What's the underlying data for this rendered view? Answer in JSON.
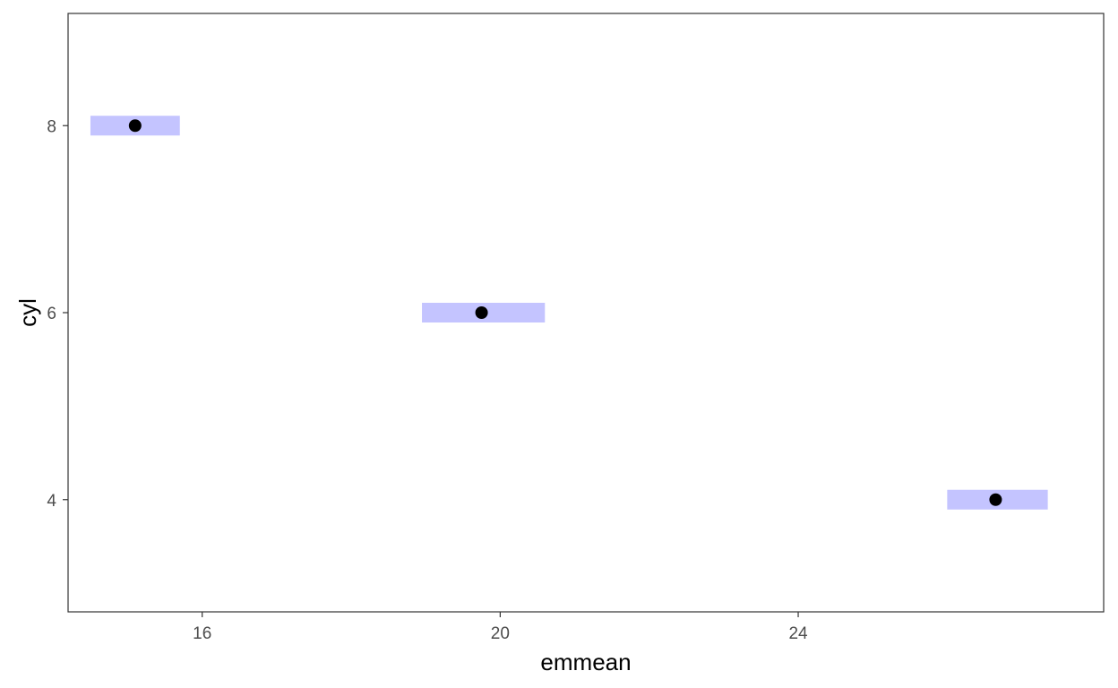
{
  "chart_data": {
    "type": "scatter",
    "title": "",
    "xlabel": "emmean",
    "ylabel": "cyl",
    "xlim": [
      14.2,
      28.1
    ],
    "ylim": [
      2.8,
      9.2
    ],
    "x_ticks": [
      16,
      20,
      24
    ],
    "y_ticks": [
      4,
      6,
      8
    ],
    "x_tick_labels": [
      "16",
      "20",
      "24"
    ],
    "y_tick_labels": [
      "4",
      "6",
      "8"
    ],
    "grid": false,
    "legend": "none",
    "points": [
      {
        "cyl": 8,
        "emmean": 15.1,
        "lower": 14.5,
        "upper": 15.7
      },
      {
        "cyl": 6,
        "emmean": 19.75,
        "lower": 18.95,
        "upper": 20.6
      },
      {
        "cyl": 4,
        "emmean": 26.65,
        "lower": 26.0,
        "upper": 27.35
      }
    ],
    "colors": {
      "interval_fill": "#c4c4ff",
      "point": "#000000",
      "panel_border": "#333333",
      "axis_text": "#4d4d4d",
      "tick": "#333333"
    }
  }
}
